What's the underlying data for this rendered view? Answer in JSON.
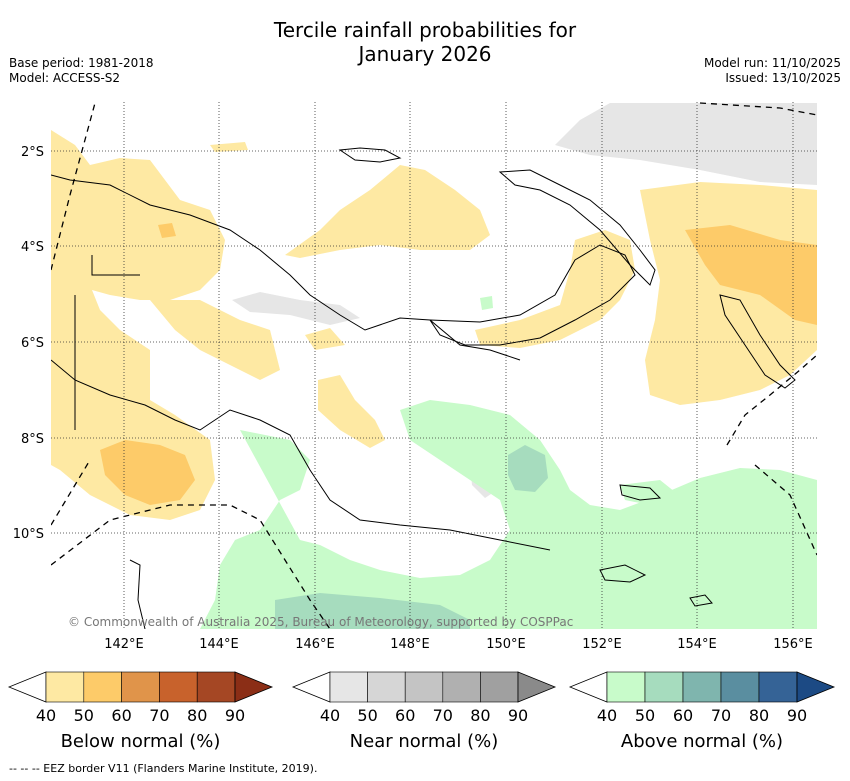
{
  "header": {
    "title_line1": "Tercile rainfall probabilities for",
    "title_line2": "January 2026",
    "base_period": "Base period: 1981-2018",
    "model": "Model: ACCESS-S2",
    "model_run": "Model run: 11/10/2025",
    "issued": "Issued: 13/10/2025"
  },
  "map": {
    "lat_labels": [
      "2°S",
      "4°S",
      "6°S",
      "8°S",
      "10°S"
    ],
    "lon_labels": [
      "142°E",
      "144°E",
      "146°E",
      "148°E",
      "150°E",
      "152°E",
      "154°E",
      "156°E"
    ],
    "credit": "© Commonwealth of Australia 2025, Bureau of Meteorology, supported by COSPPac",
    "colors": {
      "below_40": "#fee9a3",
      "below_50": "#fdcb69",
      "near_40": "#e6e6e6",
      "above_40": "#c8fbca",
      "above_50": "#a6dcbe"
    }
  },
  "colorbars": [
    {
      "label": "Below normal (%)",
      "ticks": [
        "40",
        "50",
        "60",
        "70",
        "80",
        "90"
      ],
      "colors": [
        "#fee9a3",
        "#fdcb69",
        "#e0944a",
        "#c8622c",
        "#a54724",
        "#8b2e16"
      ]
    },
    {
      "label": "Near normal (%)",
      "ticks": [
        "40",
        "50",
        "60",
        "70",
        "80",
        "90"
      ],
      "colors": [
        "#e6e6e6",
        "#d6d6d6",
        "#c4c4c4",
        "#b0b0b0",
        "#a0a0a0",
        "#8a8a8a"
      ]
    },
    {
      "label": "Above normal (%)",
      "ticks": [
        "40",
        "50",
        "60",
        "70",
        "80",
        "90"
      ],
      "colors": [
        "#c8fbca",
        "#a6dcbe",
        "#7fb5ae",
        "#5a8ea0",
        "#356396",
        "#1c4a84"
      ]
    }
  ],
  "footnote": "-- -- -- EEZ border V11 (Flanders Marine Institute, 2019)."
}
